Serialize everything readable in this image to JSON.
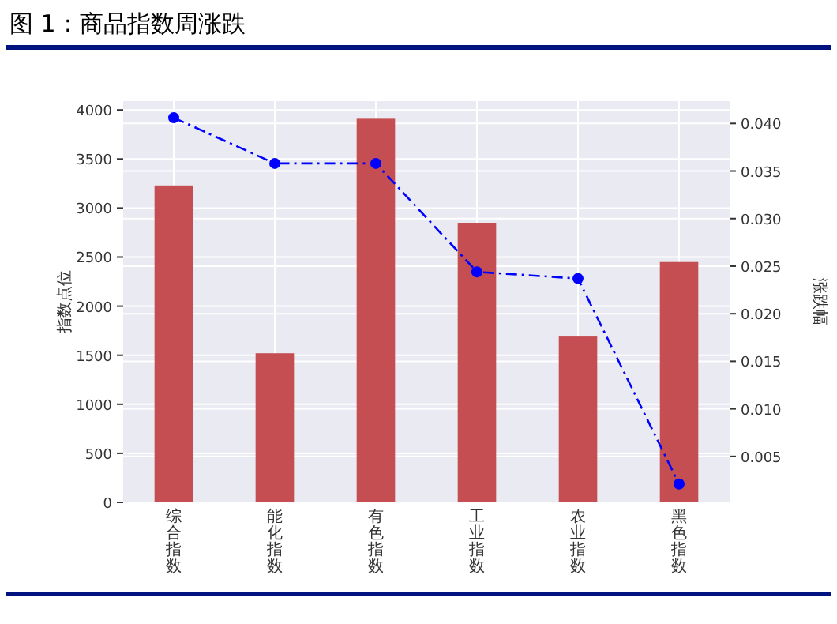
{
  "chart_data": {
    "type": "bar",
    "title": "图 1：商品指数周涨跌",
    "ylabel": "指数点位",
    "y2label": "涨跌幅",
    "categories": [
      "综合指数",
      "能化指数",
      "有色指数",
      "工业指数",
      "农业指数",
      "黑色指数"
    ],
    "series": [
      {
        "color": "#c44e52",
        "values": [
          3230,
          1520,
          3910,
          2850,
          1690,
          2450
        ]
      },
      {
        "type": "line",
        "axis": "y2",
        "color": "#0000ff",
        "marker": "circle",
        "line_style": "dashed",
        "values": [
          0.0406,
          0.0358,
          0.0358,
          0.0244,
          0.0237,
          0.0021
        ]
      }
    ],
    "ylim": [
      0,
      4090
    ],
    "yticks": [
      0,
      500,
      1000,
      1500,
      2000,
      2500,
      3000,
      3500,
      4000
    ],
    "y2lim": [
      0.00017,
      0.04235
    ],
    "y2ticks": [
      {
        "value": 0.005,
        "label": "0.005"
      },
      {
        "value": 0.01,
        "label": "0.010"
      },
      {
        "value": 0.015,
        "label": "0.015"
      },
      {
        "value": 0.02,
        "label": "0.020"
      },
      {
        "value": 0.025,
        "label": "0.025"
      },
      {
        "value": 0.03,
        "label": "0.030"
      },
      {
        "value": 0.035,
        "label": "0.035"
      },
      {
        "value": 0.04,
        "label": "0.040"
      }
    ],
    "grid": true
  }
}
